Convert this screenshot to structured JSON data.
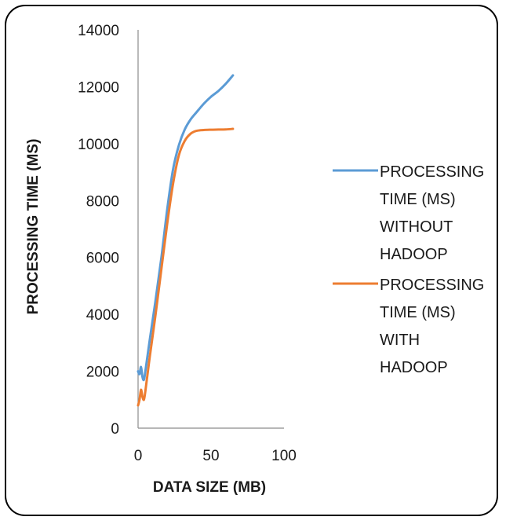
{
  "chart_data": {
    "type": "line",
    "title": "",
    "xlabel": "DATA SIZE (MB)",
    "ylabel": "PROCESSING TIME (MS)",
    "xlim": [
      0,
      100
    ],
    "ylim": [
      0,
      14000
    ],
    "x_ticks": [
      "0",
      "50",
      "100"
    ],
    "y_ticks": [
      "0",
      "2000",
      "4000",
      "6000",
      "8000",
      "10000",
      "12000",
      "14000"
    ],
    "x_tick_values": [
      0,
      50,
      100
    ],
    "y_tick_values": [
      0,
      2000,
      4000,
      6000,
      8000,
      10000,
      12000,
      14000
    ],
    "grid": false,
    "legend_position": "right",
    "series": [
      {
        "name": "PROCESSING TIME (MS) WITHOUT HADOOP",
        "legend_lines": [
          "PROCESSING",
          "TIME (MS)",
          "WITHOUT",
          "HADOOP"
        ],
        "color": "#5B9BD5",
        "x": [
          0,
          1,
          2,
          3,
          4,
          5,
          8,
          12,
          16,
          20,
          24,
          28,
          32,
          36,
          40,
          45,
          50,
          55,
          60,
          65
        ],
        "y": [
          2000,
          1900,
          2150,
          1800,
          1700,
          2000,
          3100,
          4500,
          6000,
          7700,
          9100,
          9950,
          10500,
          10850,
          11100,
          11400,
          11650,
          11850,
          12100,
          12400
        ]
      },
      {
        "name": "PROCESSING TIME (MS) WITH HADOOP",
        "legend_lines": [
          "PROCESSING",
          "TIME (MS)",
          "WITH",
          "HADOOP"
        ],
        "color": "#ED7D31",
        "x": [
          0,
          1,
          2,
          3,
          4,
          5,
          8,
          12,
          16,
          20,
          24,
          28,
          32,
          36,
          40,
          45,
          50,
          55,
          60,
          65
        ],
        "y": [
          800,
          1000,
          1350,
          1100,
          1000,
          1300,
          2500,
          4000,
          5600,
          7200,
          8600,
          9600,
          10100,
          10350,
          10450,
          10480,
          10490,
          10495,
          10500,
          10520
        ]
      }
    ]
  }
}
